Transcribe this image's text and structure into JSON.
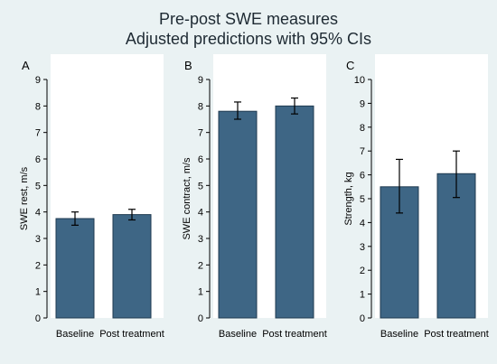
{
  "figure": {
    "title_line1": "Pre-post SWE measures",
    "title_line2": "Adjusted predictions with 95% CIs",
    "bar_color": "#3e6685",
    "background_color": "#eaf2f3"
  },
  "chart_data": [
    {
      "type": "bar",
      "panel": "A",
      "categories": [
        "Baseline",
        "Post treatment"
      ],
      "values": [
        3.75,
        3.9
      ],
      "ci_lower": [
        3.5,
        3.7
      ],
      "ci_upper": [
        4.0,
        4.1
      ],
      "ylabel": "SWE rest, m/s",
      "ylim": [
        0,
        9
      ],
      "yticks": [
        0,
        1,
        2,
        3,
        4,
        5,
        6,
        7,
        8,
        9
      ],
      "grid": false
    },
    {
      "type": "bar",
      "panel": "B",
      "categories": [
        "Baseline",
        "Post treatment"
      ],
      "values": [
        7.8,
        8.0
      ],
      "ci_lower": [
        7.5,
        7.7
      ],
      "ci_upper": [
        8.15,
        8.3
      ],
      "ylabel": "SWE contract, m/s",
      "ylim": [
        0,
        9
      ],
      "yticks": [
        0,
        1,
        2,
        3,
        4,
        5,
        6,
        7,
        8,
        9
      ],
      "grid": false
    },
    {
      "type": "bar",
      "panel": "C",
      "categories": [
        "Baseline",
        "Post treatment"
      ],
      "values": [
        5.5,
        6.05
      ],
      "ci_lower": [
        4.4,
        5.05
      ],
      "ci_upper": [
        6.65,
        7.0
      ],
      "ylabel": "Strength, kg",
      "ylim": [
        0,
        10
      ],
      "yticks": [
        0,
        1,
        2,
        3,
        4,
        5,
        6,
        7,
        8,
        9,
        10
      ],
      "grid": false
    }
  ]
}
